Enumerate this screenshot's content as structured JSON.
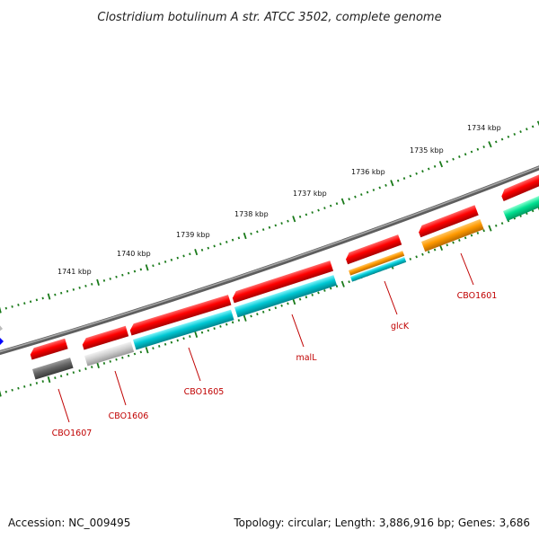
{
  "title": "Clostridium botulinum A str. ATCC 3502, complete genome",
  "scale_labels": [
    "1741 kbp",
    "1740 kbp",
    "1739 kbp",
    "1738 kbp",
    "1737 kbp",
    "1736 kbp",
    "1735 kbp",
    "1734 kbp"
  ],
  "gene_labels": [
    "CBO1607",
    "CBO1606",
    "CBO1605",
    "malL",
    "glcK",
    "CBO1601"
  ],
  "footer": {
    "accession": "Accession: NC_009495",
    "summary": "Topology: circular; Length: 3,886,916 bp; Genes: 3,686"
  },
  "colors": {
    "cds": "#ff0000",
    "backbone": "#808080",
    "ticks": "#1a7a1a",
    "label": "#c00000",
    "cyan": "#00c8d4",
    "orange": "#ff9900",
    "gray": "#666666",
    "silver": "#c8c8c8",
    "green": "#00e090",
    "blue": "#0000ff"
  }
}
